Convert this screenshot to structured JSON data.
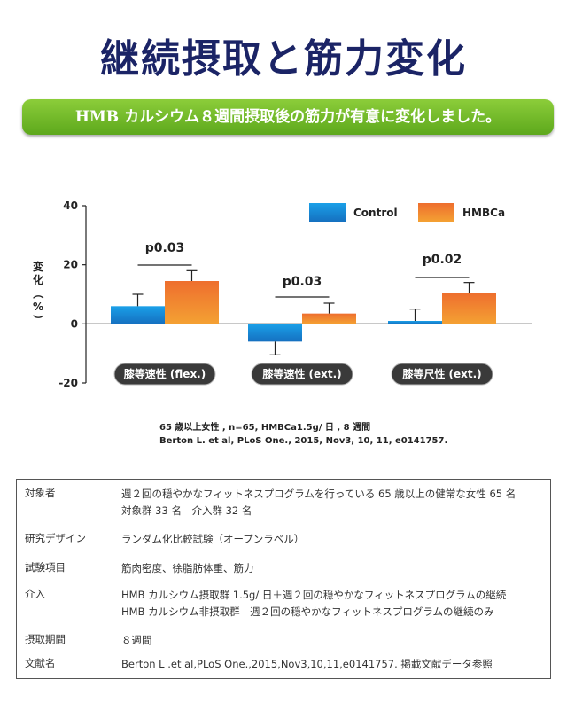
{
  "page_title": "継続摂取と筋力変化",
  "subtitle": "HMB カルシウム８週間摂取後の筋力が有意に変化しました。",
  "chart_data": {
    "type": "bar",
    "categories": [
      "膝等速性 (flex.)",
      "膝等速性 (ext.)",
      "膝等尺性 (ext.)"
    ],
    "series": [
      {
        "name": "Control",
        "values": [
          6,
          -6,
          1
        ],
        "errors": [
          4,
          4.5,
          4
        ]
      },
      {
        "name": "HMBCa",
        "values": [
          14.5,
          3.5,
          10.5
        ],
        "errors": [
          3.5,
          3.5,
          3.5
        ]
      }
    ],
    "ylabel": "変化（%）",
    "yticks": [
      40,
      20,
      0,
      -20
    ],
    "ylim": [
      -20,
      40
    ],
    "annotations": [
      "p0.03",
      "p0.03",
      "p0.02"
    ],
    "legend_position": "top-right",
    "colors": {
      "Control": "#1e8fd8",
      "HMBCa": "#ee7b2e",
      "pill": "#3a3a3a"
    }
  },
  "citation": {
    "line1": "65 歳以上女性 , n=65, HMBCa1.5g/ 日 , 8 週間",
    "line2": "Berton L. et al, PLoS One., 2015, Nov3, 10, 11, e0141757."
  },
  "study_info": [
    {
      "label": "対象者",
      "lines": [
        "週２回の穏やかなフィットネスプログラムを行っている 65 歳以上の健常な女性 65 名",
        "対象群 33 名　介入群 32 名"
      ]
    },
    {
      "label": "研究デザイン",
      "lines": [
        "ランダム化比較試験（オープンラベル）"
      ]
    },
    {
      "label": "試験項目",
      "lines": [
        "筋肉密度、徐脂肪体重、筋力"
      ]
    },
    {
      "label": "介入",
      "lines": [
        "HMB カルシウム摂取群 1.5g/ 日＋週２回の穏やかなフィットネスプログラムの継続",
        "HMB カルシウム非摂取群　週２回の穏やかなフィットネスプログラムの継続のみ"
      ]
    },
    {
      "label": "摂取期間",
      "lines": [
        "８週間"
      ]
    },
    {
      "label": "文献名",
      "lines": [
        "Berton L .et al,PLoS One.,2015,Nov3,10,11,e0141757. 掲載文献データ参照"
      ]
    }
  ]
}
